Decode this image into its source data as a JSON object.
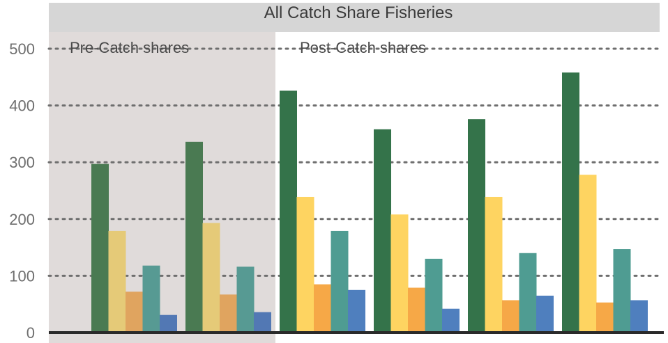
{
  "chart_data": {
    "type": "bar",
    "title": "All Catch Share Fisheries",
    "xlabel": "",
    "ylabel": "",
    "ylim": [
      0,
      500
    ],
    "yticks": [
      0,
      100,
      200,
      300,
      400,
      500
    ],
    "grid": "horizontal-dotted",
    "periods": [
      {
        "label": "Pre-Catch shares",
        "groups": [
          0,
          1
        ],
        "shaded": true
      },
      {
        "label": "Post-Catch shares",
        "groups": [
          2,
          3,
          4,
          5
        ],
        "shaded": false
      }
    ],
    "groups": [
      {
        "values": [
          297,
          179,
          72,
          118,
          31
        ]
      },
      {
        "values": [
          336,
          193,
          67,
          116,
          36
        ]
      },
      {
        "values": [
          426,
          239,
          85,
          179,
          75
        ]
      },
      {
        "values": [
          358,
          208,
          79,
          130,
          42
        ]
      },
      {
        "values": [
          376,
          239,
          57,
          140,
          65
        ]
      },
      {
        "values": [
          458,
          278,
          53,
          147,
          57
        ]
      }
    ],
    "series_colors": [
      "#34734a",
      "#fed461",
      "#f6a847",
      "#4f9c92",
      "#4f7fbe"
    ],
    "series_colors_faded": [
      "#4a7a52",
      "#e5ca78",
      "#e0a45f",
      "#579a93",
      "#5278b4"
    ],
    "header_color": "#d6d6d6",
    "pre_period_bg": "#e0dbda",
    "baseline_color": "#2a2a2a",
    "grid_color": "#6e6e6e"
  }
}
